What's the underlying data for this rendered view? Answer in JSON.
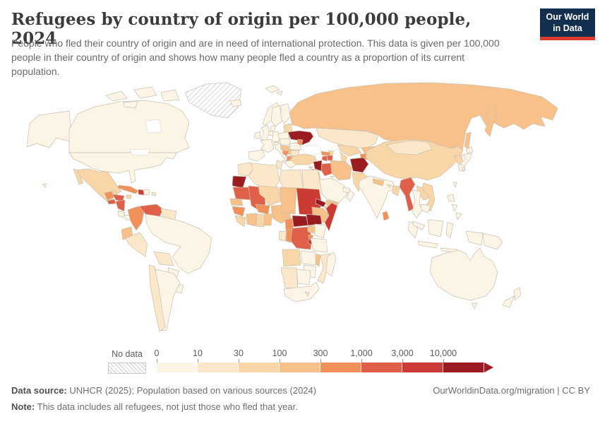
{
  "header": {
    "title": "Refugees by country of origin per 100,000 people, 2024",
    "subtitle": "People who fled their country of origin and are in need of international protection. This data is given per 100,000 people in their country of origin and shows how many people fled a country as a proportion of its current population.",
    "logo": {
      "line1": "Our World",
      "line2": "in Data",
      "bg_color": "#132F4F",
      "accent_color": "#DB3A2E"
    }
  },
  "legend": {
    "no_data_label": "No data",
    "tick_labels": [
      "0",
      "10",
      "30",
      "100",
      "300",
      "1,000",
      "3,000",
      "10,000"
    ],
    "bin_colors": [
      "#FCF4E4",
      "#FBE8CA",
      "#F9D6A7",
      "#F7C189",
      "#F19159",
      "#E05F49",
      "#CB3B34",
      "#9A1C21"
    ]
  },
  "footer": {
    "source_label": "Data source:",
    "source_text": " UNHCR (2025); Population based on various sources (2024)",
    "note_label": "Note:",
    "note_text": " This data includes all refugees, not just those who fled that year.",
    "right_text": "OurWorldinData.org/migration | CC BY"
  },
  "chart_data": {
    "type": "heatmap",
    "variant": "world-choropleth",
    "title": "Refugees by country of origin per 100,000 people, 2024",
    "year": 2024,
    "unit": "refugees per 100,000 people of origin-country population",
    "scale": "log-binned",
    "legend_bins": [
      "0–10",
      "10–30",
      "30–100",
      "100–300",
      "300–1,000",
      "1,000–3,000",
      "3,000–10,000",
      "10,000+"
    ],
    "no_data_style": "diagonal-hatch",
    "regions": [
      {
        "id": "usa",
        "name": "United States",
        "bin": 0
      },
      {
        "id": "canada",
        "name": "Canada",
        "bin": 0
      },
      {
        "id": "greenland",
        "name": "Greenland",
        "bin": null
      },
      {
        "id": "iceland",
        "name": "Iceland",
        "bin": 0
      },
      {
        "id": "mexico",
        "name": "Mexico",
        "bin": 2
      },
      {
        "id": "belize",
        "name": "Belize",
        "bin": 2
      },
      {
        "id": "guatemala",
        "name": "Guatemala",
        "bin": 4
      },
      {
        "id": "elsalvador",
        "name": "El Salvador",
        "bin": 5
      },
      {
        "id": "honduras",
        "name": "Honduras",
        "bin": 5
      },
      {
        "id": "nicaragua",
        "name": "Nicaragua",
        "bin": 5
      },
      {
        "id": "costarica",
        "name": "Costa Rica",
        "bin": 0
      },
      {
        "id": "panama",
        "name": "Panama",
        "bin": 0
      },
      {
        "id": "cuba",
        "name": "Cuba",
        "bin": 4
      },
      {
        "id": "jamaica",
        "name": "Jamaica",
        "bin": 2
      },
      {
        "id": "haiti",
        "name": "Haiti",
        "bin": 6
      },
      {
        "id": "dominicanrep",
        "name": "Dominican Republic",
        "bin": 0
      },
      {
        "id": "puertorico",
        "name": "Puerto Rico",
        "bin": 1
      },
      {
        "id": "colombia",
        "name": "Colombia",
        "bin": 4
      },
      {
        "id": "venezuela",
        "name": "Venezuela",
        "bin": 5
      },
      {
        "id": "guianas",
        "name": "Guyana, Suriname & French Guiana",
        "bin": 1
      },
      {
        "id": "ecuador",
        "name": "Ecuador",
        "bin": 3
      },
      {
        "id": "peru",
        "name": "Peru",
        "bin": 1
      },
      {
        "id": "brazil",
        "name": "Brazil",
        "bin": 0
      },
      {
        "id": "bolivia",
        "name": "Bolivia",
        "bin": 1
      },
      {
        "id": "paraguay",
        "name": "Paraguay",
        "bin": 0
      },
      {
        "id": "uruguay",
        "name": "Uruguay",
        "bin": 0
      },
      {
        "id": "chile",
        "name": "Chile",
        "bin": 1
      },
      {
        "id": "argentina",
        "name": "Argentina",
        "bin": 0
      },
      {
        "id": "ireland",
        "name": "Ireland",
        "bin": 0
      },
      {
        "id": "uk",
        "name": "United Kingdom",
        "bin": 0
      },
      {
        "id": "norway",
        "name": "Norway",
        "bin": 0
      },
      {
        "id": "sweden",
        "name": "Sweden",
        "bin": 0
      },
      {
        "id": "finland",
        "name": "Finland",
        "bin": 0
      },
      {
        "id": "denmark",
        "name": "Denmark",
        "bin": 0
      },
      {
        "id": "baltics",
        "name": "Baltic states",
        "bin": 2
      },
      {
        "id": "belarus",
        "name": "Belarus",
        "bin": 3
      },
      {
        "id": "poland",
        "name": "Poland",
        "bin": 0
      },
      {
        "id": "germany",
        "name": "Germany",
        "bin": 0
      },
      {
        "id": "benelux",
        "name": "Benelux",
        "bin": 0
      },
      {
        "id": "france",
        "name": "France",
        "bin": 0
      },
      {
        "id": "iberia",
        "name": "Spain & Portugal",
        "bin": 0
      },
      {
        "id": "italy",
        "name": "Italy",
        "bin": 0
      },
      {
        "id": "switzerland",
        "name": "Switzerland",
        "bin": 0
      },
      {
        "id": "austriaczech",
        "name": "Austria, Czechia & Slovakia",
        "bin": 0
      },
      {
        "id": "hungary",
        "name": "Hungary",
        "bin": 1
      },
      {
        "id": "croatia",
        "name": "Croatia & Slovenia",
        "bin": 3
      },
      {
        "id": "bosnia",
        "name": "Bosnia and Herzegovina",
        "bin": 4
      },
      {
        "id": "serbia",
        "name": "Serbia",
        "bin": 3
      },
      {
        "id": "albania",
        "name": "Albania & Montenegro",
        "bin": 4
      },
      {
        "id": "macedonia",
        "name": "North Macedonia",
        "bin": 4
      },
      {
        "id": "greece",
        "name": "Greece",
        "bin": 0
      },
      {
        "id": "bulgaria",
        "name": "Bulgaria",
        "bin": 1
      },
      {
        "id": "romania",
        "name": "Romania",
        "bin": 0
      },
      {
        "id": "moldova",
        "name": "Moldova",
        "bin": 4
      },
      {
        "id": "ukraine",
        "name": "Ukraine",
        "bin": 7
      },
      {
        "id": "russia",
        "name": "Russia",
        "bin": 3
      },
      {
        "id": "kazakhstan",
        "name": "Kazakhstan",
        "bin": 1
      },
      {
        "id": "uzbekistan",
        "name": "Uzbekistan",
        "bin": 2
      },
      {
        "id": "turkmenistan",
        "name": "Turkmenistan",
        "bin": 2
      },
      {
        "id": "kyrgyzstan",
        "name": "Kyrgyzstan",
        "bin": 3
      },
      {
        "id": "tajikistan",
        "name": "Tajikistan",
        "bin": 4
      },
      {
        "id": "georgia",
        "name": "Georgia",
        "bin": 4
      },
      {
        "id": "armenia",
        "name": "Armenia",
        "bin": 5
      },
      {
        "id": "azerbaijan",
        "name": "Azerbaijan",
        "bin": 5
      },
      {
        "id": "turkey",
        "name": "Turkey",
        "bin": 2
      },
      {
        "id": "cyprus",
        "name": "Cyprus",
        "bin": 2
      },
      {
        "id": "syria",
        "name": "Syria",
        "bin": 7
      },
      {
        "id": "lebanon",
        "name": "Lebanon",
        "bin": 3
      },
      {
        "id": "israel",
        "name": "Israel",
        "bin": 0
      },
      {
        "id": "jordan",
        "name": "Jordan",
        "bin": 2
      },
      {
        "id": "iraq",
        "name": "Iraq",
        "bin": 5
      },
      {
        "id": "iran",
        "name": "Iran",
        "bin": 3
      },
      {
        "id": "saudiarabia",
        "name": "Saudi Arabia",
        "bin": 0
      },
      {
        "id": "kuwait",
        "name": "Kuwait",
        "bin": 0
      },
      {
        "id": "uae",
        "name": "United Arab Emirates",
        "bin": 0
      },
      {
        "id": "oman",
        "name": "Oman",
        "bin": 0
      },
      {
        "id": "yemen",
        "name": "Yemen",
        "bin": 3
      },
      {
        "id": "afghanistan",
        "name": "Afghanistan",
        "bin": 7
      },
      {
        "id": "pakistan",
        "name": "Pakistan",
        "bin": 2
      },
      {
        "id": "india",
        "name": "India",
        "bin": 0
      },
      {
        "id": "nepal",
        "name": "Nepal",
        "bin": 3
      },
      {
        "id": "bhutan",
        "name": "Bhutan",
        "bin": 1
      },
      {
        "id": "bangladesh",
        "name": "Bangladesh",
        "bin": 2
      },
      {
        "id": "srilanka",
        "name": "Sri Lanka",
        "bin": 4
      },
      {
        "id": "myanmar",
        "name": "Myanmar",
        "bin": 5
      },
      {
        "id": "china",
        "name": "China",
        "bin": 2
      },
      {
        "id": "mongolia",
        "name": "Mongolia",
        "bin": 1
      },
      {
        "id": "northkorea",
        "name": "North Korea",
        "bin": 2
      },
      {
        "id": "southkorea",
        "name": "South Korea",
        "bin": 0
      },
      {
        "id": "japan",
        "name": "Japan",
        "bin": 0
      },
      {
        "id": "taiwan",
        "name": "Taiwan",
        "bin": 0
      },
      {
        "id": "laos",
        "name": "Laos",
        "bin": 2
      },
      {
        "id": "vietnam",
        "name": "Vietnam",
        "bin": 2
      },
      {
        "id": "thailand",
        "name": "Thailand",
        "bin": 0
      },
      {
        "id": "cambodia",
        "name": "Cambodia",
        "bin": 0
      },
      {
        "id": "malaysia",
        "name": "Malaysia",
        "bin": 0
      },
      {
        "id": "philippines",
        "name": "Philippines",
        "bin": 0
      },
      {
        "id": "indonesia",
        "name": "Indonesia",
        "bin": 0
      },
      {
        "id": "papuanewguinea",
        "name": "Papua New Guinea",
        "bin": 0
      },
      {
        "id": "australia",
        "name": "Australia",
        "bin": 0
      },
      {
        "id": "newzealand",
        "name": "New Zealand",
        "bin": 0
      },
      {
        "id": "morocco",
        "name": "Morocco",
        "bin": 1
      },
      {
        "id": "westernsahara",
        "name": "Western Sahara",
        "bin": 7
      },
      {
        "id": "algeria",
        "name": "Algeria",
        "bin": 1
      },
      {
        "id": "tunisia",
        "name": "Tunisia",
        "bin": 1
      },
      {
        "id": "libya",
        "name": "Libya",
        "bin": 1
      },
      {
        "id": "egypt",
        "name": "Egypt",
        "bin": 1
      },
      {
        "id": "mauritania",
        "name": "Mauritania",
        "bin": 5
      },
      {
        "id": "mali",
        "name": "Mali",
        "bin": 5
      },
      {
        "id": "senegal",
        "name": "Senegal & Gambia",
        "bin": 3
      },
      {
        "id": "guinea",
        "name": "Guinea",
        "bin": 4
      },
      {
        "id": "sierraleone",
        "name": "Sierra Leone & Liberia",
        "bin": 2
      },
      {
        "id": "ivorycoast",
        "name": "Côte d'Ivoire",
        "bin": 3
      },
      {
        "id": "ghana",
        "name": "Ghana",
        "bin": 2
      },
      {
        "id": "togobenin",
        "name": "Togo & Benin",
        "bin": 3
      },
      {
        "id": "burkinafaso",
        "name": "Burkina Faso",
        "bin": 4
      },
      {
        "id": "niger",
        "name": "Niger",
        "bin": 2
      },
      {
        "id": "nigeria",
        "name": "Nigeria",
        "bin": 3
      },
      {
        "id": "chad",
        "name": "Chad",
        "bin": 3
      },
      {
        "id": "sudan",
        "name": "Sudan",
        "bin": 6
      },
      {
        "id": "eritrea",
        "name": "Eritrea",
        "bin": 7
      },
      {
        "id": "djibouti",
        "name": "Djibouti",
        "bin": 3
      },
      {
        "id": "ethiopia",
        "name": "Ethiopia",
        "bin": 3
      },
      {
        "id": "somalia",
        "name": "Somalia",
        "bin": 6
      },
      {
        "id": "southsudan",
        "name": "South Sudan",
        "bin": 7
      },
      {
        "id": "car",
        "name": "Central African Republic",
        "bin": 7
      },
      {
        "id": "cameroon",
        "name": "Cameroon",
        "bin": 4
      },
      {
        "id": "gabon",
        "name": "Gabon",
        "bin": 1
      },
      {
        "id": "congo",
        "name": "Congo",
        "bin": 4
      },
      {
        "id": "drc",
        "name": "Democratic Republic of Congo",
        "bin": 5
      },
      {
        "id": "uganda",
        "name": "Uganda",
        "bin": 3
      },
      {
        "id": "kenya",
        "name": "Kenya",
        "bin": 0
      },
      {
        "id": "rwanda",
        "name": "Rwanda",
        "bin": 4
      },
      {
        "id": "burundi",
        "name": "Burundi",
        "bin": 6
      },
      {
        "id": "tanzania",
        "name": "Tanzania",
        "bin": 0
      },
      {
        "id": "angola",
        "name": "Angola",
        "bin": 2
      },
      {
        "id": "zambia",
        "name": "Zambia",
        "bin": 0
      },
      {
        "id": "malawi",
        "name": "Malawi",
        "bin": 3
      },
      {
        "id": "mozambique",
        "name": "Mozambique",
        "bin": 1
      },
      {
        "id": "zimbabwe",
        "name": "Zimbabwe",
        "bin": 0
      },
      {
        "id": "namibia",
        "name": "Namibia",
        "bin": 1
      },
      {
        "id": "botswana",
        "name": "Botswana",
        "bin": 0
      },
      {
        "id": "southafrica",
        "name": "South Africa",
        "bin": 0
      },
      {
        "id": "lesotho",
        "name": "Lesotho",
        "bin": 1
      },
      {
        "id": "madagascar",
        "name": "Madagascar",
        "bin": 0
      }
    ]
  }
}
